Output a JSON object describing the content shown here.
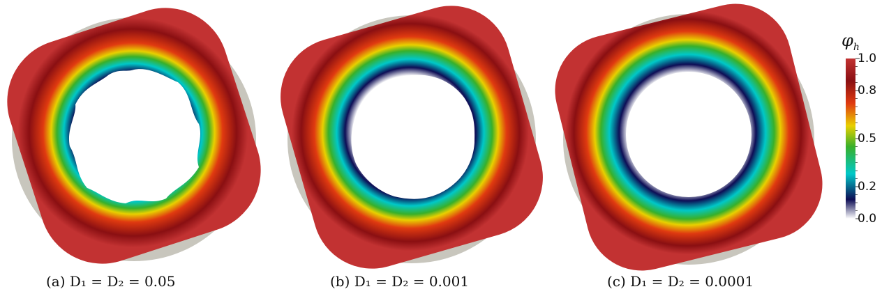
{
  "panels": [
    {
      "id": "a",
      "caption": "(a) D₁ = D₂ = 0.05",
      "waviness": 1.0
    },
    {
      "id": "b",
      "caption": "(b) D₁ = D₂ = 0.001",
      "waviness": 0.35
    },
    {
      "id": "c",
      "caption": "(c) D₁ = D₂ = 0.0001",
      "waviness": 0.05
    }
  ],
  "colorbar": {
    "title": "φ",
    "title_sub": "h",
    "ticks": [
      "1.0",
      "0.8",
      "0.5",
      "0.2",
      "0.0"
    ],
    "tick_values": [
      1.0,
      0.8,
      0.5,
      0.2,
      0.0
    ],
    "range": [
      0.0,
      1.0
    ]
  },
  "colors": {
    "background_disk": "#c8c6bd",
    "outer": "#b22d2d",
    "map": [
      "#ffffff",
      "#0d0d55",
      "#00c8c8",
      "#38b02a",
      "#e8d000",
      "#e03a10",
      "#8a0f12",
      "#c23232"
    ]
  }
}
